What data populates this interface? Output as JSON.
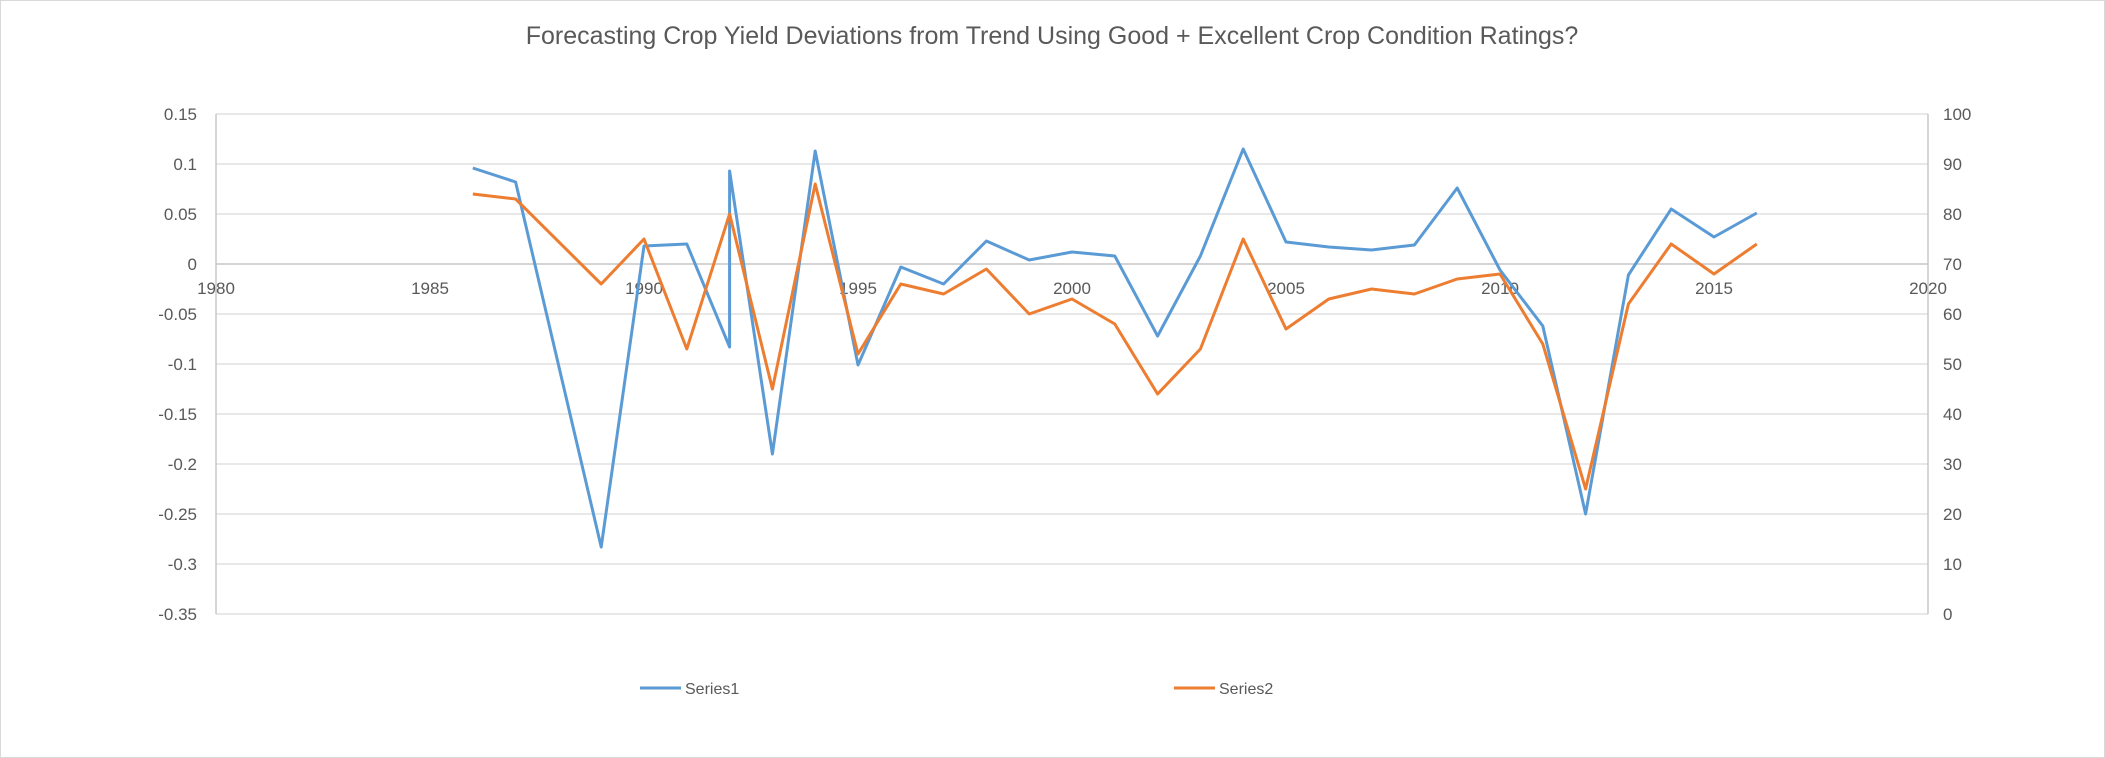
{
  "chart_data": {
    "type": "line",
    "title": "Forecasting Crop Yield Deviations from Trend Using Good + Excellent Crop Condition Ratings?",
    "xlabel": "",
    "ylabel": "",
    "xlim": [
      1980,
      2020
    ],
    "ylim": [
      -0.35,
      0.15
    ],
    "y2lim": [
      0,
      100
    ],
    "x_ticks": [
      1980,
      1985,
      1990,
      1995,
      2000,
      2005,
      2010,
      2015,
      2020
    ],
    "x_tick_labels": [
      "1980",
      "1985",
      "1990",
      "1995",
      "2000",
      "2005",
      "2010",
      "2015",
      "2020"
    ],
    "y_tick_labels": [
      "0.15",
      "0.1",
      "0.05",
      "0",
      "-0.05",
      "-0.1",
      "-0.15",
      "-0.2",
      "-0.25",
      "-0.3",
      "-0.35"
    ],
    "y_ticks": [
      0.15,
      0.1,
      0.05,
      0,
      -0.05,
      -0.1,
      -0.15,
      -0.2,
      -0.25,
      -0.3,
      -0.35
    ],
    "y2_tick_labels": [
      "100",
      "90",
      "80",
      "70",
      "60",
      "50",
      "40",
      "30",
      "20",
      "10",
      "0"
    ],
    "y2_ticks": [
      100,
      90,
      80,
      70,
      60,
      50,
      40,
      30,
      20,
      10,
      0
    ],
    "grid": true,
    "legend_position": "bottom",
    "series": [
      {
        "name": "Series1",
        "axis": "left",
        "color": "#5b9bd5",
        "points": [
          [
            1986,
            0.096
          ],
          [
            1987,
            0.082
          ],
          [
            1989,
            -0.283
          ],
          [
            1990,
            0.018
          ],
          [
            1991,
            0.02
          ],
          [
            1992,
            -0.083
          ],
          [
            1992,
            0.093
          ],
          [
            1993,
            -0.19
          ],
          [
            1994,
            0.113
          ],
          [
            1995,
            -0.101
          ],
          [
            1996,
            -0.003
          ],
          [
            1997,
            -0.02
          ],
          [
            1998,
            0.023
          ],
          [
            1999,
            0.004
          ],
          [
            2000,
            0.012
          ],
          [
            2001,
            0.008
          ],
          [
            2002,
            -0.072
          ],
          [
            2003,
            0.008
          ],
          [
            2004,
            0.115
          ],
          [
            2005,
            0.022
          ],
          [
            2006,
            0.017
          ],
          [
            2007,
            0.014
          ],
          [
            2008,
            0.019
          ],
          [
            2009,
            0.076
          ],
          [
            2010,
            -0.006
          ],
          [
            2011,
            -0.062
          ],
          [
            2012,
            -0.25
          ],
          [
            2013,
            -0.011
          ],
          [
            2014,
            0.055
          ],
          [
            2015,
            0.027
          ],
          [
            2016,
            0.051
          ]
        ]
      },
      {
        "name": "Series2",
        "axis": "right",
        "color": "#ed7d31",
        "points": [
          [
            1986,
            84
          ],
          [
            1987,
            83
          ],
          [
            1989,
            66
          ],
          [
            1990,
            75
          ],
          [
            1991,
            53
          ],
          [
            1992,
            80
          ],
          [
            1993,
            45
          ],
          [
            1994,
            86
          ],
          [
            1995,
            52
          ],
          [
            1996,
            66
          ],
          [
            1997,
            64
          ],
          [
            1998,
            69
          ],
          [
            1999,
            60
          ],
          [
            2000,
            63
          ],
          [
            2001,
            58
          ],
          [
            2002,
            44
          ],
          [
            2003,
            53
          ],
          [
            2004,
            75
          ],
          [
            2005,
            57
          ],
          [
            2006,
            63
          ],
          [
            2007,
            65
          ],
          [
            2008,
            64
          ],
          [
            2009,
            67
          ],
          [
            2010,
            68
          ],
          [
            2011,
            54
          ],
          [
            2012,
            25
          ],
          [
            2013,
            62
          ],
          [
            2014,
            74
          ],
          [
            2015,
            68
          ],
          [
            2016,
            74
          ]
        ]
      }
    ]
  }
}
